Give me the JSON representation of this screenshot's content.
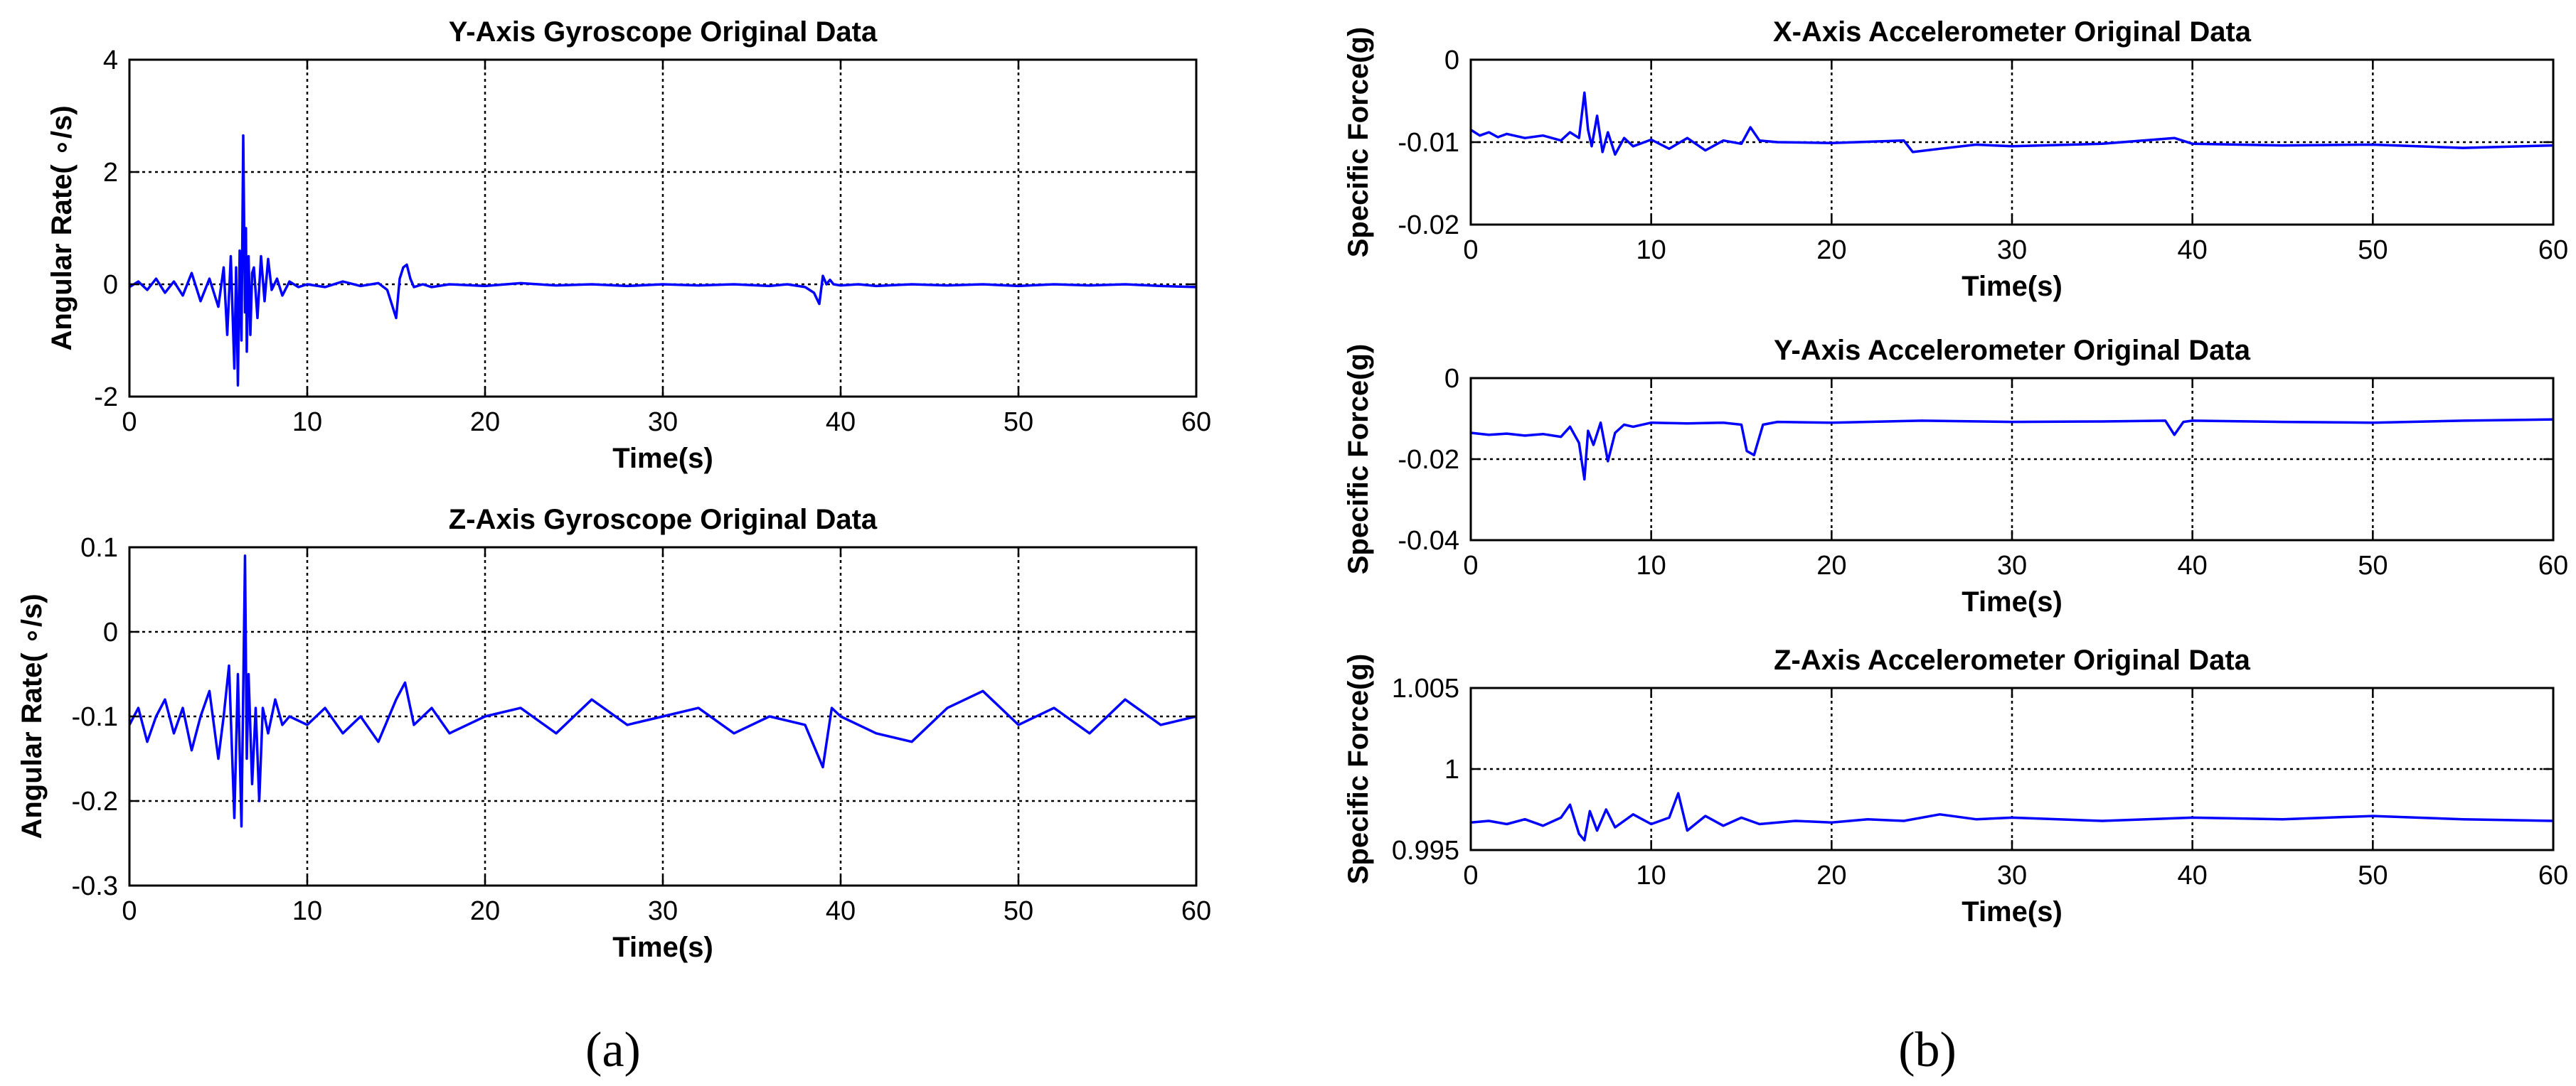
{
  "panel_labels": [
    "(a)",
    "(b)"
  ],
  "chart_data": [
    {
      "type": "line",
      "title": "Y-Axis Gyroscope Original Data",
      "xlabel": "Time(s)",
      "ylabel": "Angular Rate( ∘/s)",
      "xlim": [
        0,
        60
      ],
      "ylim": [
        -2,
        4
      ],
      "xticks": [
        0,
        10,
        20,
        30,
        40,
        50,
        60
      ],
      "xtick_labels": [
        "0",
        "10",
        "20",
        "30",
        "40",
        "50",
        "60"
      ],
      "yticks": [
        -2,
        0,
        2,
        4
      ],
      "ytick_labels": [
        "-2",
        "0",
        "2",
        "4"
      ],
      "grid": true,
      "line_color": "#0000ff",
      "series": [
        {
          "x": [
            0,
            0.5,
            1,
            1.5,
            2,
            2.5,
            3,
            3.5,
            4,
            4.5,
            5,
            5.3,
            5.5,
            5.7,
            5.9,
            6.0,
            6.1,
            6.2,
            6.3,
            6.4,
            6.5,
            6.55,
            6.6,
            6.7,
            6.8,
            6.9,
            7.0,
            7.2,
            7.4,
            7.6,
            7.8,
            8.0,
            8.3,
            8.6,
            9,
            9.5,
            10,
            11,
            12,
            13,
            14,
            14.5,
            15,
            15.2,
            15.4,
            15.6,
            15.8,
            16,
            16.5,
            17,
            18,
            20,
            22,
            24,
            26,
            28,
            30,
            32,
            34,
            36,
            37,
            38,
            38.5,
            38.8,
            39,
            39.2,
            39.4,
            39.6,
            40,
            41,
            42,
            44,
            46,
            48,
            50,
            52,
            54,
            56,
            58,
            60
          ],
          "y": [
            -0.05,
            0.05,
            -0.1,
            0.1,
            -0.15,
            0.05,
            -0.2,
            0.2,
            -0.3,
            0.1,
            -0.4,
            0.3,
            -0.9,
            0.5,
            -1.5,
            0.3,
            -1.8,
            0.6,
            -1.0,
            2.65,
            -0.5,
            1.0,
            -1.2,
            0.5,
            -0.9,
            0.2,
            0.3,
            -0.6,
            0.5,
            -0.3,
            0.45,
            -0.1,
            0.1,
            -0.2,
            0.05,
            -0.05,
            0.0,
            -0.05,
            0.05,
            -0.03,
            0.02,
            -0.1,
            -0.6,
            0.1,
            0.3,
            0.35,
            0.1,
            -0.05,
            0.0,
            -0.05,
            0.0,
            -0.03,
            0.02,
            -0.02,
            0.0,
            -0.03,
            0.0,
            -0.02,
            0.0,
            -0.03,
            0.0,
            -0.05,
            -0.15,
            -0.35,
            0.15,
            0.0,
            0.08,
            0.0,
            -0.02,
            0.0,
            -0.03,
            0.0,
            -0.02,
            0.0,
            -0.03,
            0.0,
            -0.02,
            0.0,
            -0.03,
            -0.05
          ]
        }
      ]
    },
    {
      "type": "line",
      "title": "Z-Axis Gyroscope Original Data",
      "xlabel": "Time(s)",
      "ylabel": "Angular Rate( ∘/s)",
      "xlim": [
        0,
        60
      ],
      "ylim": [
        -0.3,
        0.1
      ],
      "xticks": [
        0,
        10,
        20,
        30,
        40,
        50,
        60
      ],
      "xtick_labels": [
        "0",
        "10",
        "20",
        "30",
        "40",
        "50",
        "60"
      ],
      "yticks": [
        -0.3,
        -0.2,
        -0.1,
        0,
        0.1
      ],
      "ytick_labels": [
        "-0.3",
        "-0.2",
        "-0.1",
        "0",
        "0.1"
      ],
      "grid": true,
      "line_color": "#0000ff",
      "series": [
        {
          "x": [
            0,
            0.5,
            1,
            1.5,
            2,
            2.5,
            3,
            3.5,
            4,
            4.5,
            5,
            5.3,
            5.6,
            5.9,
            6.1,
            6.3,
            6.5,
            6.6,
            6.7,
            6.9,
            7.1,
            7.3,
            7.5,
            7.8,
            8.2,
            8.6,
            9,
            10,
            11,
            12,
            13,
            14,
            15,
            15.5,
            16,
            17,
            18,
            20,
            22,
            24,
            26,
            28,
            30,
            32,
            34,
            36,
            38,
            39,
            39.5,
            40,
            42,
            44,
            46,
            48,
            50,
            52,
            54,
            56,
            58,
            60
          ],
          "y": [
            -0.11,
            -0.09,
            -0.13,
            -0.1,
            -0.08,
            -0.12,
            -0.09,
            -0.14,
            -0.1,
            -0.07,
            -0.15,
            -0.1,
            -0.04,
            -0.22,
            -0.05,
            -0.23,
            0.09,
            -0.15,
            -0.05,
            -0.18,
            -0.09,
            -0.2,
            -0.09,
            -0.12,
            -0.08,
            -0.11,
            -0.1,
            -0.11,
            -0.09,
            -0.12,
            -0.1,
            -0.13,
            -0.08,
            -0.06,
            -0.11,
            -0.09,
            -0.12,
            -0.1,
            -0.09,
            -0.12,
            -0.08,
            -0.11,
            -0.1,
            -0.09,
            -0.12,
            -0.1,
            -0.11,
            -0.16,
            -0.09,
            -0.1,
            -0.12,
            -0.13,
            -0.09,
            -0.07,
            -0.11,
            -0.09,
            -0.12,
            -0.08,
            -0.11,
            -0.1
          ]
        }
      ]
    },
    {
      "type": "line",
      "title": "X-Axis Accelerometer Original Data",
      "xlabel": "Time(s)",
      "ylabel": "Specific Force(g)",
      "xlim": [
        0,
        60
      ],
      "ylim": [
        -0.02,
        0
      ],
      "xticks": [
        0,
        10,
        20,
        30,
        40,
        50,
        60
      ],
      "xtick_labels": [
        "0",
        "10",
        "20",
        "30",
        "40",
        "50",
        "60"
      ],
      "yticks": [
        -0.02,
        -0.01,
        0
      ],
      "ytick_labels": [
        "-0.02",
        "-0.01",
        "0"
      ],
      "grid": true,
      "line_color": "#0000ff",
      "series": [
        {
          "x": [
            0,
            0.5,
            1,
            1.5,
            2,
            3,
            4,
            5,
            5.5,
            6,
            6.3,
            6.5,
            6.7,
            7,
            7.3,
            7.6,
            8,
            8.5,
            9,
            10,
            11,
            12,
            13,
            14,
            15,
            15.5,
            16,
            17,
            20,
            24,
            24.5,
            26,
            28,
            30,
            35,
            39,
            40,
            45,
            50,
            55,
            60
          ],
          "y": [
            -0.0085,
            -0.0092,
            -0.0088,
            -0.0094,
            -0.009,
            -0.0095,
            -0.0092,
            -0.0098,
            -0.0088,
            -0.0095,
            -0.004,
            -0.0085,
            -0.0105,
            -0.0068,
            -0.0112,
            -0.0088,
            -0.0115,
            -0.0095,
            -0.0105,
            -0.0097,
            -0.0108,
            -0.0095,
            -0.011,
            -0.0098,
            -0.0102,
            -0.0082,
            -0.0098,
            -0.01,
            -0.0101,
            -0.0098,
            -0.0112,
            -0.0108,
            -0.0103,
            -0.0105,
            -0.0102,
            -0.0095,
            -0.0102,
            -0.0104,
            -0.0103,
            -0.0107,
            -0.0104
          ]
        }
      ]
    },
    {
      "type": "line",
      "title": "Y-Axis Accelerometer Original Data",
      "xlabel": "Time(s)",
      "ylabel": "Specific Force(g)",
      "xlim": [
        0,
        60
      ],
      "ylim": [
        -0.04,
        0
      ],
      "xticks": [
        0,
        10,
        20,
        30,
        40,
        50,
        60
      ],
      "xtick_labels": [
        "0",
        "10",
        "20",
        "30",
        "40",
        "50",
        "60"
      ],
      "yticks": [
        -0.04,
        -0.02,
        0
      ],
      "ytick_labels": [
        "-0.04",
        "-0.02",
        "0"
      ],
      "grid": true,
      "line_color": "#0000ff",
      "series": [
        {
          "x": [
            0,
            1,
            2,
            3,
            4,
            5,
            5.5,
            6,
            6.3,
            6.5,
            6.8,
            7.2,
            7.6,
            8,
            8.5,
            9,
            10,
            12,
            14,
            15,
            15.3,
            15.7,
            16.2,
            17,
            20,
            25,
            30,
            35,
            38.5,
            39,
            39.5,
            40,
            45,
            50,
            55,
            60
          ],
          "y": [
            -0.0135,
            -0.014,
            -0.0137,
            -0.0142,
            -0.0138,
            -0.0145,
            -0.012,
            -0.016,
            -0.025,
            -0.013,
            -0.0165,
            -0.011,
            -0.0205,
            -0.0135,
            -0.0115,
            -0.012,
            -0.011,
            -0.0112,
            -0.011,
            -0.0115,
            -0.018,
            -0.019,
            -0.0115,
            -0.0108,
            -0.011,
            -0.0105,
            -0.0108,
            -0.0107,
            -0.0105,
            -0.014,
            -0.0108,
            -0.0105,
            -0.0108,
            -0.011,
            -0.0105,
            -0.0102
          ]
        }
      ]
    },
    {
      "type": "line",
      "title": "Z-Axis Accelerometer Original Data",
      "xlabel": "Time(s)",
      "ylabel": "Specific Force(g)",
      "xlim": [
        0,
        60
      ],
      "ylim": [
        0.995,
        1.005
      ],
      "xticks": [
        0,
        10,
        20,
        30,
        40,
        50,
        60
      ],
      "xtick_labels": [
        "0",
        "10",
        "20",
        "30",
        "40",
        "50",
        "60"
      ],
      "yticks": [
        0.995,
        1,
        1.005
      ],
      "ytick_labels": [
        "0.995",
        "1",
        "1.005"
      ],
      "grid": true,
      "line_color": "#0000ff",
      "series": [
        {
          "x": [
            0,
            1,
            2,
            3,
            4,
            5,
            5.5,
            6,
            6.3,
            6.6,
            7,
            7.5,
            8,
            9,
            10,
            11,
            11.5,
            12,
            13,
            14,
            15,
            16,
            18,
            20,
            22,
            24,
            26,
            28,
            30,
            35,
            40,
            45,
            50,
            55,
            60
          ],
          "y": [
            0.9967,
            0.9968,
            0.9966,
            0.9969,
            0.9965,
            0.997,
            0.9978,
            0.996,
            0.9956,
            0.9974,
            0.9962,
            0.9975,
            0.9964,
            0.9972,
            0.9966,
            0.997,
            0.9985,
            0.9962,
            0.9971,
            0.9965,
            0.997,
            0.9966,
            0.9968,
            0.9967,
            0.9969,
            0.9968,
            0.9972,
            0.9969,
            0.997,
            0.9968,
            0.997,
            0.9969,
            0.9971,
            0.9969,
            0.9968
          ]
        }
      ]
    }
  ]
}
